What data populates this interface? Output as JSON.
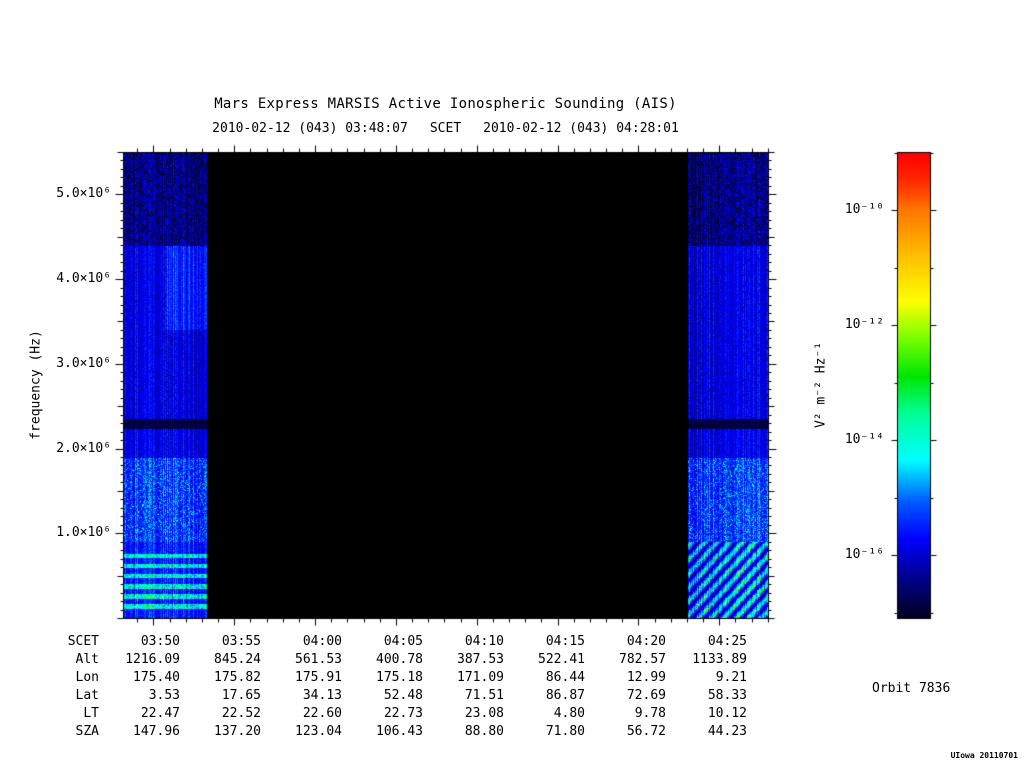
{
  "annotations": {
    "orbit": "Orbit 7836",
    "credit": "UIowa 20110701"
  },
  "chart_data": {
    "type": "heatmap",
    "title": "Mars Express MARSIS Active Ionospheric Sounding (AIS)",
    "scet": {
      "start_label": "2010-02-12 (043) 03:48:07",
      "axis_label": "SCET",
      "end_label": "2010-02-12 (043) 04:28:01"
    },
    "x_axis": {
      "label": "SCET",
      "range_sec": [
        13687,
        16081
      ],
      "minor_tick_interval_sec": 60,
      "major_tick_interval_sec": 300,
      "major_tick_labels": [
        "03:50",
        "03:55",
        "04:00",
        "04:05",
        "04:10",
        "04:15",
        "04:20",
        "04:25"
      ]
    },
    "y_axis": {
      "label": "frequency (Hz)",
      "range_hz": [
        0,
        5500000
      ],
      "minor_tick_interval_hz": 100000,
      "major_ticks": [
        {
          "value_hz": 5000000,
          "label": "5.0×10⁶"
        },
        {
          "value_hz": 4000000,
          "label": "4.0×10⁶"
        },
        {
          "value_hz": 3000000,
          "label": "3.0×10⁶"
        },
        {
          "value_hz": 2000000,
          "label": "2.0×10⁶"
        },
        {
          "value_hz": 1000000,
          "label": "1.0×10⁶"
        }
      ]
    },
    "colorbar": {
      "unit_label": "V² m⁻² Hz⁻¹",
      "scale": "log",
      "range_exponents": [
        -9,
        -17
      ],
      "ticks": [
        {
          "exponent": -10,
          "label": "10⁻¹⁰"
        },
        {
          "exponent": -12,
          "label": "10⁻¹²"
        },
        {
          "exponent": -14,
          "label": "10⁻¹⁴"
        },
        {
          "exponent": -16,
          "label": "10⁻¹⁶"
        }
      ],
      "colors_top_to_bottom": [
        "#ff0000",
        "#ff7800",
        "#ffff00",
        "#00e600",
        "#00ffff",
        "#0000ff",
        "#000020"
      ]
    },
    "spectrogram": {
      "time_coverage_frac": [
        [
          0.0,
          0.131
        ],
        [
          0.876,
          1.0
        ]
      ],
      "features": {
        "low_freq_top_hz": 900000,
        "harmonic_bands_hz": [
          140000,
          260000,
          380000,
          500000,
          620000,
          740000
        ],
        "absorption_band_hz": [
          2240000,
          2360000
        ],
        "speckle_above_hz": 4400000
      },
      "description": "AIS data present only at the segment edges; central interval is black (no data). Blue noise background with vertical sounding striations, cyan-green enhancements below ~0.9 MHz, and a dark electron-cyclotron absorption band near 2.3 MHz."
    },
    "ephemeris": {
      "rows": [
        {
          "label": "SCET",
          "values": [
            "03:50",
            "03:55",
            "04:00",
            "04:05",
            "04:10",
            "04:15",
            "04:20",
            "04:25"
          ]
        },
        {
          "label": "Alt",
          "values": [
            "1216.09",
            "845.24",
            "561.53",
            "400.78",
            "387.53",
            "522.41",
            "782.57",
            "1133.89"
          ]
        },
        {
          "label": "Lon",
          "values": [
            "175.40",
            "175.82",
            "175.91",
            "175.18",
            "171.09",
            "86.44",
            "12.99",
            "9.21"
          ]
        },
        {
          "label": "Lat",
          "values": [
            "3.53",
            "17.65",
            "34.13",
            "52.48",
            "71.51",
            "86.87",
            "72.69",
            "58.33"
          ]
        },
        {
          "label": "LT",
          "values": [
            "22.47",
            "22.52",
            "22.60",
            "22.73",
            "23.08",
            "4.80",
            "9.78",
            "10.12"
          ]
        },
        {
          "label": "SZA",
          "values": [
            "147.96",
            "137.20",
            "123.04",
            "106.43",
            "88.80",
            "71.80",
            "56.72",
            "44.23"
          ]
        }
      ]
    }
  }
}
